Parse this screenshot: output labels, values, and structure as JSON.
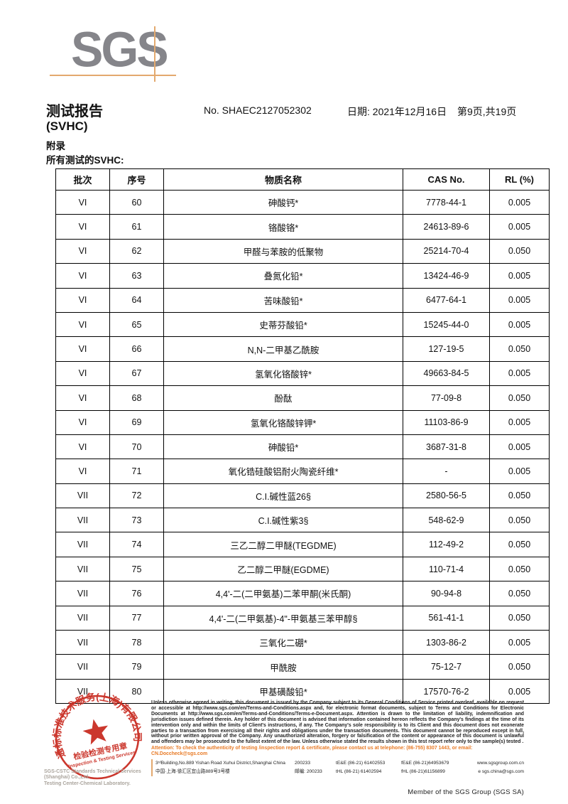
{
  "header": {
    "logo_text": "SGS",
    "title_line1": "测试报告",
    "title_line2": "(SVHC)",
    "report_no": "No. SHAEC2127052302",
    "date": "日期: 2021年12月16日",
    "page_info": "第9页,共19页",
    "appendix": "附录",
    "tested_label": "所有测试的SVHC:"
  },
  "table": {
    "columns": [
      "批次",
      "序号",
      "物质名称",
      "CAS No.",
      "RL (%)"
    ],
    "rows": [
      {
        "batch": "VI",
        "no": "60",
        "name": "砷酸钙*",
        "cas": "7778-44-1",
        "rl": "0.005"
      },
      {
        "batch": "VI",
        "no": "61",
        "name": "铬酸铬*",
        "cas": "24613-89-6",
        "rl": "0.005"
      },
      {
        "batch": "VI",
        "no": "62",
        "name": "甲醛与苯胺的低聚物",
        "cas": "25214-70-4",
        "rl": "0.050"
      },
      {
        "batch": "VI",
        "no": "63",
        "name": "叠氮化铅*",
        "cas": "13424-46-9",
        "rl": "0.005"
      },
      {
        "batch": "VI",
        "no": "64",
        "name": "苦味酸铅*",
        "cas": "6477-64-1",
        "rl": "0.005"
      },
      {
        "batch": "VI",
        "no": "65",
        "name": "史蒂芬酸铅*",
        "cas": "15245-44-0",
        "rl": "0.005"
      },
      {
        "batch": "VI",
        "no": "66",
        "name": "N,N-二甲基乙酰胺",
        "cas": "127-19-5",
        "rl": "0.050"
      },
      {
        "batch": "VI",
        "no": "67",
        "name": "氢氧化铬酸锌*",
        "cas": "49663-84-5",
        "rl": "0.005"
      },
      {
        "batch": "VI",
        "no": "68",
        "name": "酚酞",
        "cas": "77-09-8",
        "rl": "0.050"
      },
      {
        "batch": "VI",
        "no": "69",
        "name": "氢氧化铬酸锌钾*",
        "cas": "11103-86-9",
        "rl": "0.005"
      },
      {
        "batch": "VI",
        "no": "70",
        "name": "砷酸铅*",
        "cas": "3687-31-8",
        "rl": "0.005"
      },
      {
        "batch": "VI",
        "no": "71",
        "name": "氧化锆硅酸铝耐火陶瓷纤维*",
        "cas": "-",
        "rl": "0.005"
      },
      {
        "batch": "VII",
        "no": "72",
        "name": "C.I.碱性蓝26§",
        "cas": "2580-56-5",
        "rl": "0.050"
      },
      {
        "batch": "VII",
        "no": "73",
        "name": "C.I.碱性紫3§",
        "cas": "548-62-9",
        "rl": "0.050"
      },
      {
        "batch": "VII",
        "no": "74",
        "name": "三乙二醇二甲醚(TEGDME)",
        "cas": "112-49-2",
        "rl": "0.050"
      },
      {
        "batch": "VII",
        "no": "75",
        "name": "乙二醇二甲醚(EGDME)",
        "cas": "110-71-4",
        "rl": "0.050"
      },
      {
        "batch": "VII",
        "no": "76",
        "name": "4,4'-二(二甲氨基)二苯甲酮(米氏酮)",
        "cas": "90-94-8",
        "rl": "0.050"
      },
      {
        "batch": "VII",
        "no": "77",
        "name": "4,4'-二(二甲氨基)-4\"-甲氨基三苯甲醇§",
        "cas": "561-41-1",
        "rl": "0.050"
      },
      {
        "batch": "VII",
        "no": "78",
        "name": "三氧化二硼*",
        "cas": "1303-86-2",
        "rl": "0.005"
      },
      {
        "batch": "VII",
        "no": "79",
        "name": "甲酰胺",
        "cas": "75-12-7",
        "rl": "0.050"
      },
      {
        "batch": "VII",
        "no": "80",
        "name": "甲基磺酸铅*",
        "cas": "17570-76-2",
        "rl": "0.005"
      }
    ]
  },
  "stamp": {
    "ring_text": "通标标准技术服务(上海)有限公司",
    "line1": "检验检测专用章",
    "line2": "Inspection & Testing Services",
    "company_en": "SGS-CSTC Standards Technical Services (Shanghai) Co.,Ltd.",
    "company_en2": "Testing Center-Chemical Laboratory.",
    "stamp_red": "#c8281e"
  },
  "footer": {
    "legal": "Unless otherwise agreed in writing, this document is issued by the Company subject to its General Conditions of Service printed overleaf, available on request or accessible at http://www.sgs.com/en/Terms-and-Conditions.aspx and, for electronic format documents, subject to Terms and Conditions for Electronic Documents at http://www.sgs.com/en/Terms-and-Conditions/Terms-e-Document.aspx. Attention is drawn to the limitation of liability, indemnification and jurisdiction issues defined therein. Any holder of this document is advised that information contained hereon reflects the Company's findings at the time of its intervention only and within the limits of Client's instructions, if any. The Company's sole responsibility is to its Client and this document does not exonerate parties to a transaction from exercising all their rights and obligations under the transaction documents. This document cannot be reproduced except in full, without prior written approval of the Company. Any unauthorized alteration, forgery or falsification of the content or appearance of this document is unlawful and offenders may be prosecuted to the fullest extent of the law. Unless otherwise stated the results shown in this test report refer only to the sample(s) tested .",
    "attention": "Attention: To check the authenticity of testing /inspection report & certificate, please contact us at telephone: (86-755) 8307 1443, or email: CN.Doccheck@sgs.com",
    "address_en": "3ʳᵈBuilding,No.889 Yishan Road Xuhui District,Shanghai China",
    "zip_en": "200233",
    "phone_en_t": "tE&E (86-21) 61402553",
    "phone_en_f": "fE&E (86-21)64953679",
    "web": "www.sgsgroup.com.cn",
    "address_cn": "中国·上海·徐汇区宜山路889号3号楼",
    "zip_cn": "邮编: 200233",
    "phone_cn_t": "tHL (86-21) 61402594",
    "phone_cn_f": "fHL (86-21)61156899",
    "email": "e  sgs.china@sgs.com",
    "member": "Member of the SGS Group (SGS SA)"
  },
  "colors": {
    "accent_orange": "#e87a25",
    "line_tan": "#e3a96e",
    "logo_gray": "#85858a",
    "stamp_red": "#c8281e"
  }
}
